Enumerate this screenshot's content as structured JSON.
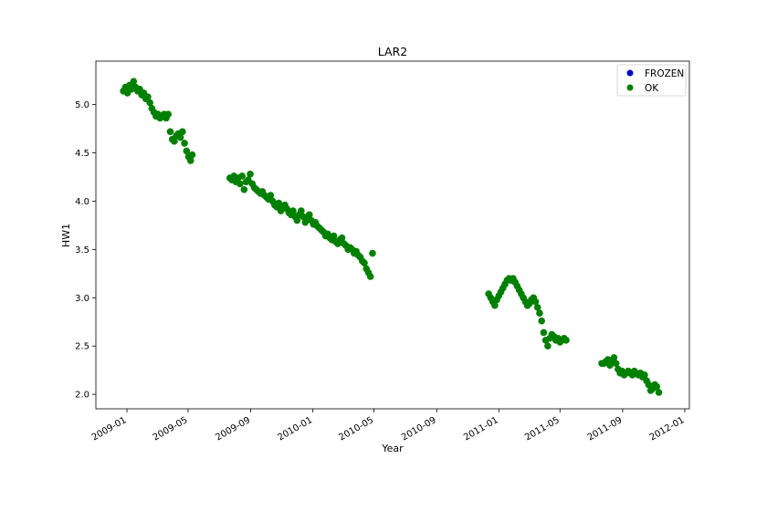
{
  "chart_data": {
    "type": "scatter",
    "title": "LAR2",
    "xlabel": "Year",
    "ylabel": "HW1",
    "x_ticks": [
      "2009-01",
      "2009-05",
      "2009-09",
      "2010-01",
      "2010-05",
      "2010-09",
      "2011-01",
      "2011-05",
      "2011-09",
      "2012-01"
    ],
    "y_ticks": [
      "2.0",
      "2.5",
      "3.0",
      "3.5",
      "4.0",
      "4.5",
      "5.0"
    ],
    "xlim": [
      "2008-11-01",
      "2012-01-10"
    ],
    "ylim": [
      1.85,
      5.45
    ],
    "grid": false,
    "legend": "upper-right",
    "series": [
      {
        "name": "FROZEN",
        "color": "#0000cc",
        "points": []
      },
      {
        "name": "OK",
        "color": "#008000",
        "points": [
          [
            "2008-12-25",
            5.14
          ],
          [
            "2008-12-29",
            5.18
          ],
          [
            "2009-01-02",
            5.12
          ],
          [
            "2009-01-06",
            5.2
          ],
          [
            "2009-01-10",
            5.16
          ],
          [
            "2009-01-14",
            5.24
          ],
          [
            "2009-01-18",
            5.18
          ],
          [
            "2009-01-22",
            5.14
          ],
          [
            "2009-01-26",
            5.16
          ],
          [
            "2009-01-30",
            5.1
          ],
          [
            "2009-02-03",
            5.12
          ],
          [
            "2009-02-07",
            5.06
          ],
          [
            "2009-02-11",
            5.08
          ],
          [
            "2009-02-15",
            5.02
          ],
          [
            "2009-02-19",
            4.96
          ],
          [
            "2009-02-23",
            4.92
          ],
          [
            "2009-02-27",
            4.88
          ],
          [
            "2009-03-03",
            4.9
          ],
          [
            "2009-03-07",
            4.86
          ],
          [
            "2009-03-11",
            4.88
          ],
          [
            "2009-03-15",
            4.9
          ],
          [
            "2009-03-19",
            4.86
          ],
          [
            "2009-03-23",
            4.9
          ],
          [
            "2009-03-27",
            4.72
          ],
          [
            "2009-03-31",
            4.64
          ],
          [
            "2009-04-04",
            4.62
          ],
          [
            "2009-04-08",
            4.68
          ],
          [
            "2009-04-12",
            4.7
          ],
          [
            "2009-04-16",
            4.66
          ],
          [
            "2009-04-20",
            4.72
          ],
          [
            "2009-04-24",
            4.6
          ],
          [
            "2009-04-28",
            4.52
          ],
          [
            "2009-05-02",
            4.46
          ],
          [
            "2009-05-06",
            4.42
          ],
          [
            "2009-05-09",
            4.48
          ],
          [
            "2009-07-22",
            4.24
          ],
          [
            "2009-07-26",
            4.22
          ],
          [
            "2009-07-30",
            4.26
          ],
          [
            "2009-08-03",
            4.2
          ],
          [
            "2009-08-07",
            4.24
          ],
          [
            "2009-08-11",
            4.18
          ],
          [
            "2009-08-15",
            4.26
          ],
          [
            "2009-08-19",
            4.12
          ],
          [
            "2009-08-23",
            4.2
          ],
          [
            "2009-08-27",
            4.22
          ],
          [
            "2009-08-31",
            4.28
          ],
          [
            "2009-09-04",
            4.18
          ],
          [
            "2009-09-08",
            4.14
          ],
          [
            "2009-09-12",
            4.12
          ],
          [
            "2009-09-16",
            4.1
          ],
          [
            "2009-09-20",
            4.08
          ],
          [
            "2009-09-24",
            4.1
          ],
          [
            "2009-09-28",
            4.06
          ],
          [
            "2009-10-02",
            4.04
          ],
          [
            "2009-10-06",
            4.02
          ],
          [
            "2009-10-10",
            4.06
          ],
          [
            "2009-10-14",
            4.0
          ],
          [
            "2009-10-18",
            3.96
          ],
          [
            "2009-10-22",
            3.94
          ],
          [
            "2009-10-26",
            3.98
          ],
          [
            "2009-10-30",
            3.9
          ],
          [
            "2009-11-03",
            3.94
          ],
          [
            "2009-11-07",
            3.96
          ],
          [
            "2009-11-11",
            3.92
          ],
          [
            "2009-11-15",
            3.88
          ],
          [
            "2009-11-19",
            3.86
          ],
          [
            "2009-11-23",
            3.9
          ],
          [
            "2009-11-27",
            3.84
          ],
          [
            "2009-12-01",
            3.8
          ],
          [
            "2009-12-05",
            3.86
          ],
          [
            "2009-12-09",
            3.9
          ],
          [
            "2009-12-13",
            3.84
          ],
          [
            "2009-12-17",
            3.78
          ],
          [
            "2009-12-21",
            3.82
          ],
          [
            "2009-12-25",
            3.86
          ],
          [
            "2009-12-29",
            3.8
          ],
          [
            "2010-01-02",
            3.76
          ],
          [
            "2010-01-06",
            3.78
          ],
          [
            "2010-01-10",
            3.74
          ],
          [
            "2010-01-14",
            3.72
          ],
          [
            "2010-01-18",
            3.7
          ],
          [
            "2010-01-22",
            3.68
          ],
          [
            "2010-01-26",
            3.64
          ],
          [
            "2010-01-30",
            3.66
          ],
          [
            "2010-02-03",
            3.62
          ],
          [
            "2010-02-07",
            3.6
          ],
          [
            "2010-02-11",
            3.64
          ],
          [
            "2010-02-15",
            3.58
          ],
          [
            "2010-02-19",
            3.56
          ],
          [
            "2010-02-23",
            3.6
          ],
          [
            "2010-02-27",
            3.62
          ],
          [
            "2010-03-03",
            3.56
          ],
          [
            "2010-03-07",
            3.54
          ],
          [
            "2010-03-11",
            3.5
          ],
          [
            "2010-03-15",
            3.52
          ],
          [
            "2010-03-19",
            3.5
          ],
          [
            "2010-03-23",
            3.46
          ],
          [
            "2010-03-27",
            3.48
          ],
          [
            "2010-03-31",
            3.44
          ],
          [
            "2010-04-04",
            3.42
          ],
          [
            "2010-04-08",
            3.38
          ],
          [
            "2010-04-12",
            3.36
          ],
          [
            "2010-04-16",
            3.3
          ],
          [
            "2010-04-20",
            3.26
          ],
          [
            "2010-04-24",
            3.22
          ],
          [
            "2010-04-28",
            3.46
          ],
          [
            "2010-12-12",
            3.04
          ],
          [
            "2010-12-16",
            3.0
          ],
          [
            "2010-12-20",
            2.96
          ],
          [
            "2010-12-24",
            2.92
          ],
          [
            "2010-12-28",
            2.98
          ],
          [
            "2011-01-01",
            3.02
          ],
          [
            "2011-01-05",
            3.06
          ],
          [
            "2011-01-09",
            3.1
          ],
          [
            "2011-01-13",
            3.14
          ],
          [
            "2011-01-17",
            3.18
          ],
          [
            "2011-01-21",
            3.2
          ],
          [
            "2011-01-25",
            3.18
          ],
          [
            "2011-01-29",
            3.2
          ],
          [
            "2011-02-02",
            3.16
          ],
          [
            "2011-02-06",
            3.12
          ],
          [
            "2011-02-10",
            3.08
          ],
          [
            "2011-02-14",
            3.04
          ],
          [
            "2011-02-18",
            3.0
          ],
          [
            "2011-02-22",
            2.96
          ],
          [
            "2011-02-26",
            2.92
          ],
          [
            "2011-03-02",
            2.94
          ],
          [
            "2011-03-06",
            2.98
          ],
          [
            "2011-03-10",
            3.0
          ],
          [
            "2011-03-14",
            2.96
          ],
          [
            "2011-03-18",
            2.9
          ],
          [
            "2011-03-22",
            2.84
          ],
          [
            "2011-03-26",
            2.76
          ],
          [
            "2011-03-30",
            2.64
          ],
          [
            "2011-04-03",
            2.56
          ],
          [
            "2011-04-07",
            2.5
          ],
          [
            "2011-04-11",
            2.58
          ],
          [
            "2011-04-15",
            2.62
          ],
          [
            "2011-04-19",
            2.6
          ],
          [
            "2011-04-23",
            2.56
          ],
          [
            "2011-04-27",
            2.58
          ],
          [
            "2011-05-01",
            2.54
          ],
          [
            "2011-05-05",
            2.56
          ],
          [
            "2011-05-09",
            2.58
          ],
          [
            "2011-05-13",
            2.56
          ],
          [
            "2011-07-22",
            2.32
          ],
          [
            "2011-07-26",
            2.32
          ],
          [
            "2011-07-30",
            2.34
          ],
          [
            "2011-08-03",
            2.36
          ],
          [
            "2011-08-07",
            2.3
          ],
          [
            "2011-08-11",
            2.34
          ],
          [
            "2011-08-15",
            2.38
          ],
          [
            "2011-08-19",
            2.32
          ],
          [
            "2011-08-23",
            2.26
          ],
          [
            "2011-08-27",
            2.22
          ],
          [
            "2011-08-31",
            2.24
          ],
          [
            "2011-09-04",
            2.2
          ],
          [
            "2011-09-08",
            2.22
          ],
          [
            "2011-09-12",
            2.24
          ],
          [
            "2011-09-16",
            2.22
          ],
          [
            "2011-09-20",
            2.2
          ],
          [
            "2011-09-24",
            2.24
          ],
          [
            "2011-09-28",
            2.22
          ],
          [
            "2011-10-02",
            2.2
          ],
          [
            "2011-10-06",
            2.22
          ],
          [
            "2011-10-10",
            2.18
          ],
          [
            "2011-10-14",
            2.2
          ],
          [
            "2011-10-18",
            2.14
          ],
          [
            "2011-10-22",
            2.1
          ],
          [
            "2011-10-26",
            2.04
          ],
          [
            "2011-10-30",
            2.06
          ],
          [
            "2011-11-03",
            2.1
          ],
          [
            "2011-11-07",
            2.08
          ],
          [
            "2011-11-11",
            2.02
          ]
        ]
      }
    ]
  }
}
